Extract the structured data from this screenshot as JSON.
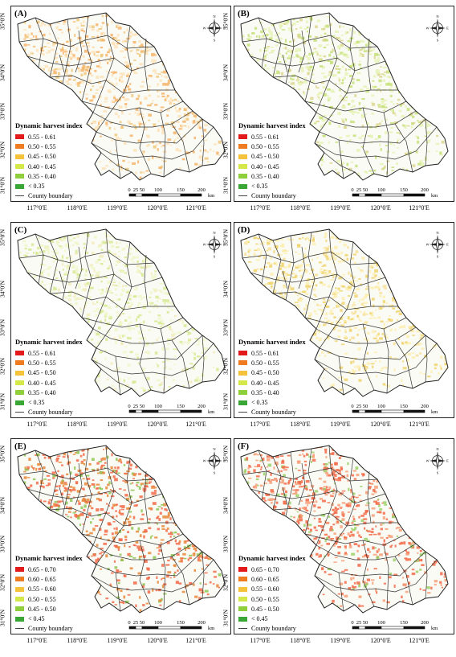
{
  "panels": [
    {
      "label": "(A)",
      "scheme": "range1",
      "tint": [
        "#fde3b8",
        "#f6b46a",
        "#eec77d"
      ],
      "dominant": "0.45 - 0.50"
    },
    {
      "label": "(B)",
      "scheme": "range1",
      "tint": [
        "#e5f2b5",
        "#c6e178",
        "#dcd690"
      ],
      "dominant": "0.40 - 0.45"
    },
    {
      "label": "(C)",
      "scheme": "range1",
      "tint": [
        "#eef6c8",
        "#d6e993",
        "#f2ecc0"
      ],
      "dominant": "0.40 - 0.45"
    },
    {
      "label": "(D)",
      "scheme": "range1",
      "tint": [
        "#fbefb3",
        "#eed36c",
        "#f6e09a"
      ],
      "dominant": "0.45 - 0.50"
    },
    {
      "label": "(E)",
      "scheme": "range2",
      "tint": [
        "#f26b4a",
        "#e8893c",
        "#8ec655"
      ],
      "dominant": "0.60 - 0.65"
    },
    {
      "label": "(F)",
      "scheme": "range2",
      "tint": [
        "#f26b4a",
        "#f6a07a",
        "#9ad066"
      ],
      "dominant": "0.65 - 0.70"
    }
  ],
  "legend": {
    "title": "Dynamic harvest index",
    "boundary_label": "County boundary",
    "range1": [
      {
        "label": "0.55 - 0.61",
        "color": "#e31a1c"
      },
      {
        "label": "0.50 - 0.55",
        "color": "#f07c22"
      },
      {
        "label": "0.45 - 0.50",
        "color": "#f5c23c"
      },
      {
        "label": "0.40 - 0.45",
        "color": "#d4e84a"
      },
      {
        "label": "0.35 - 0.40",
        "color": "#8fcf3c"
      },
      {
        "label": "< 0.35",
        "color": "#3aa635"
      }
    ],
    "range2": [
      {
        "label": "0.65 - 0.70",
        "color": "#e31a1c"
      },
      {
        "label": "0.60 - 0.65",
        "color": "#f07c22"
      },
      {
        "label": "0.55 - 0.60",
        "color": "#f5c23c"
      },
      {
        "label": "0.50 - 0.55",
        "color": "#d4e84a"
      },
      {
        "label": "0.45 - 0.50",
        "color": "#8fcf3c"
      },
      {
        "label": "< 0.45",
        "color": "#3aa635"
      }
    ]
  },
  "scale": {
    "ticks": [
      "0",
      "25",
      "50",
      "100",
      "150",
      "200"
    ],
    "unit": "km"
  },
  "compass": {
    "n": "N",
    "s": "S",
    "e": "E",
    "w": "W"
  },
  "longitudes": [
    "117°0'E",
    "118°0'E",
    "119°0'E",
    "120°0'E",
    "121°0'E"
  ],
  "latitudes": [
    "35°0'N",
    "34°0'N",
    "33°0'N",
    "32°0'N",
    "31°0'N"
  ]
}
